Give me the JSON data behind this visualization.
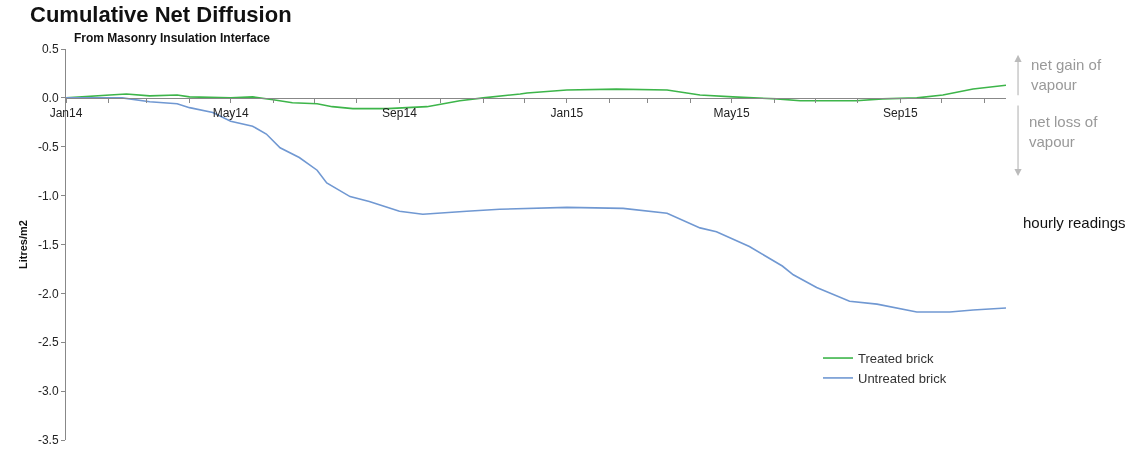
{
  "chart_data": {
    "type": "line",
    "title": "Cumulative Net Diffusion",
    "subtitle": "From Masonry Insulation Interface",
    "ylabel": "Litres/m2",
    "annotations": [
      "net gain of\nvapour",
      "net loss of\nvapour",
      "hourly readings"
    ],
    "xlim": [
      "2014-01-01",
      "2015-11-17"
    ],
    "xticks": [
      {
        "value": "2014-01-01",
        "label": "Jan14"
      },
      {
        "value": "2014-02-01",
        "label": null
      },
      {
        "value": "2014-03-01",
        "label": null
      },
      {
        "value": "2014-04-01",
        "label": null
      },
      {
        "value": "2014-05-01",
        "label": "May14"
      },
      {
        "value": "2014-06-01",
        "label": null
      },
      {
        "value": "2014-07-01",
        "label": null
      },
      {
        "value": "2014-08-01",
        "label": null
      },
      {
        "value": "2014-09-01",
        "label": "Sep14"
      },
      {
        "value": "2014-10-01",
        "label": null
      },
      {
        "value": "2014-11-01",
        "label": null
      },
      {
        "value": "2014-12-01",
        "label": null
      },
      {
        "value": "2015-01-01",
        "label": "Jan15"
      },
      {
        "value": "2015-02-01",
        "label": null
      },
      {
        "value": "2015-03-01",
        "label": null
      },
      {
        "value": "2015-04-01",
        "label": null
      },
      {
        "value": "2015-05-01",
        "label": "May15"
      },
      {
        "value": "2015-06-01",
        "label": null
      },
      {
        "value": "2015-07-01",
        "label": null
      },
      {
        "value": "2015-08-01",
        "label": null
      },
      {
        "value": "2015-09-01",
        "label": "Sep15"
      },
      {
        "value": "2015-10-01",
        "label": null
      },
      {
        "value": "2015-11-01",
        "label": null
      }
    ],
    "ylim": [
      -3.5,
      0.5
    ],
    "yticks": [
      0.5,
      {
        "value": 0,
        "label": "0.0"
      },
      -0.5,
      {
        "value": -1,
        "label": "-1.0"
      },
      -1.5,
      {
        "value": -2,
        "label": "-2.0"
      },
      -2.5,
      {
        "value": -3,
        "label": "-3.0"
      },
      -3.5
    ],
    "legend": "bottom right",
    "line_style": "solid",
    "marker": "none",
    "series": [
      {
        "name": "Treated brick",
        "color": "#3db54a",
        "x": [
          "2014-01-01",
          "2014-02-02",
          "2014-02-14",
          "2014-03-03",
          "2014-03-23",
          "2014-04-01",
          "2014-05-01",
          "2014-05-17",
          "2014-06-01",
          "2014-06-15",
          "2014-07-03",
          "2014-07-14",
          "2014-07-29",
          "2014-08-23",
          "2014-09-21",
          "2014-10-15",
          "2014-11-01",
          "2014-11-28",
          "2014-12-03",
          "2015-01-01",
          "2015-02-06",
          "2015-03-15",
          "2015-04-08",
          "2015-05-02",
          "2015-06-03",
          "2015-06-20",
          "2015-07-31",
          "2015-08-19",
          "2015-09-13",
          "2015-10-02",
          "2015-10-24",
          "2015-11-17"
        ],
        "values": [
          0,
          0.03,
          0.04,
          0.02,
          0.03,
          0.01,
          0.0,
          0.01,
          -0.02,
          -0.05,
          -0.06,
          -0.09,
          -0.11,
          -0.11,
          -0.09,
          -0.03,
          0,
          0.04,
          0.05,
          0.08,
          0.09,
          0.08,
          0.03,
          0.01,
          -0.01,
          -0.03,
          -0.03,
          -0.01,
          0,
          0.03,
          0.09,
          0.13
        ]
      },
      {
        "name": "Untreated brick",
        "color": "#7098d2",
        "x": [
          "2014-01-01",
          "2014-02-11",
          "2014-03-03",
          "2014-03-23",
          "2014-04-01",
          "2014-04-18",
          "2014-05-01",
          "2014-05-17",
          "2014-05-27",
          "2014-06-06",
          "2014-06-20",
          "2014-07-03",
          "2014-07-10",
          "2014-07-27",
          "2014-08-10",
          "2014-08-23",
          "2014-09-01",
          "2014-09-18",
          "2014-10-20",
          "2014-11-13",
          "2015-01-01",
          "2015-02-11",
          "2015-03-15",
          "2015-04-08",
          "2015-04-20",
          "2015-05-14",
          "2015-06-07",
          "2015-06-15",
          "2015-07-02",
          "2015-07-26",
          "2015-08-15",
          "2015-09-13",
          "2015-10-07",
          "2015-10-24",
          "2015-11-17"
        ],
        "values": [
          0,
          0,
          -0.04,
          -0.06,
          -0.1,
          -0.15,
          -0.24,
          -0.29,
          -0.37,
          -0.51,
          -0.61,
          -0.74,
          -0.87,
          -1.01,
          -1.06,
          -1.12,
          -1.16,
          -1.19,
          -1.16,
          -1.14,
          -1.12,
          -1.13,
          -1.18,
          -1.33,
          -1.37,
          -1.52,
          -1.72,
          -1.81,
          -1.94,
          -2.08,
          -2.11,
          -2.19,
          -2.19,
          -2.17,
          -2.15
        ]
      }
    ]
  }
}
